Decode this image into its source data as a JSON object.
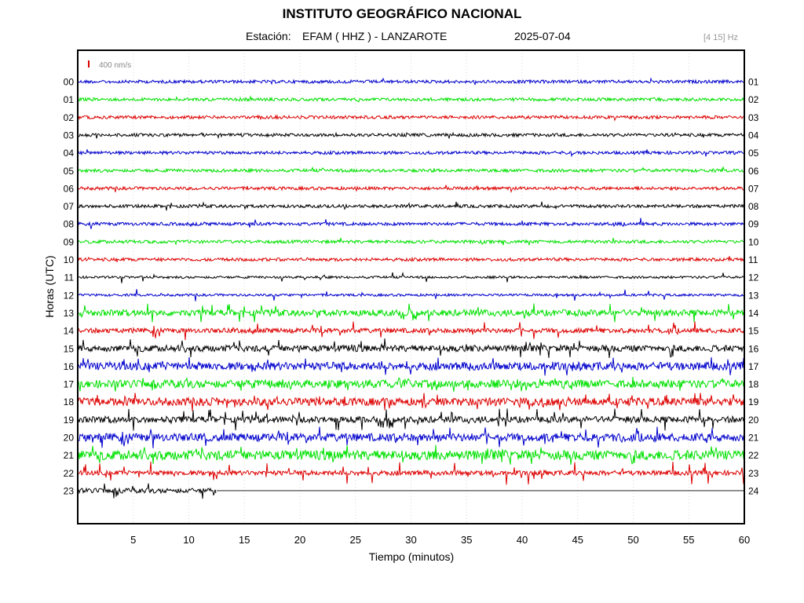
{
  "header": {
    "title": "INSTITUTO GEOGRÁFICO NACIONAL",
    "station_label": "Estación:",
    "station": "EFAM ( HHZ ) - LANZAROTE",
    "date": "2025-07-04",
    "filter": "[4 15] Hz"
  },
  "colors": {
    "blue": "#0000cc",
    "green": "#00e000",
    "red": "#dd0000",
    "black": "#000000",
    "scale_bar": "#dd0000"
  },
  "chart_data": {
    "type": "line",
    "title": "INSTITUTO GEOGRÁFICO NACIONAL",
    "xlabel": "Tiempo (minutos)",
    "ylabel": "Horas (UTC)",
    "xlim": [
      0,
      60
    ],
    "x_ticks": [
      5,
      10,
      15,
      20,
      25,
      30,
      35,
      40,
      45,
      50,
      55,
      60
    ],
    "scale_bar_label": "400 nm/s",
    "grid": "vertical dotted",
    "left_hour_labels": [
      "00",
      "01",
      "02",
      "03",
      "04",
      "05",
      "06",
      "07",
      "08",
      "09",
      "10",
      "11",
      "12",
      "13",
      "14",
      "15",
      "16",
      "17",
      "18",
      "19",
      "20",
      "21",
      "22",
      "23"
    ],
    "right_hour_labels": [
      "01",
      "02",
      "03",
      "04",
      "05",
      "06",
      "07",
      "08",
      "09",
      "10",
      "11",
      "12",
      "13",
      "14",
      "15",
      "16",
      "17",
      "18",
      "19",
      "20",
      "21",
      "22",
      "23",
      "24"
    ],
    "traces": [
      {
        "hour": "00",
        "color": "blue",
        "noise": 2,
        "spike_rate": 0.3,
        "spike_amp": 4,
        "end_minute": 60
      },
      {
        "hour": "01",
        "color": "green",
        "noise": 2,
        "spike_rate": 0.3,
        "spike_amp": 4,
        "end_minute": 60
      },
      {
        "hour": "02",
        "color": "red",
        "noise": 2,
        "spike_rate": 0.3,
        "spike_amp": 4,
        "end_minute": 60
      },
      {
        "hour": "03",
        "color": "black",
        "noise": 2,
        "spike_rate": 0.4,
        "spike_amp": 5,
        "end_minute": 60
      },
      {
        "hour": "04",
        "color": "blue",
        "noise": 2,
        "spike_rate": 0.4,
        "spike_amp": 5,
        "end_minute": 60
      },
      {
        "hour": "05",
        "color": "green",
        "noise": 2,
        "spike_rate": 0.4,
        "spike_amp": 5,
        "end_minute": 60
      },
      {
        "hour": "06",
        "color": "red",
        "noise": 2,
        "spike_rate": 0.4,
        "spike_amp": 5,
        "end_minute": 60
      },
      {
        "hour": "07",
        "color": "black",
        "noise": 2,
        "spike_rate": 0.5,
        "spike_amp": 6,
        "end_minute": 60
      },
      {
        "hour": "08",
        "color": "blue",
        "noise": 2,
        "spike_rate": 0.6,
        "spike_amp": 8,
        "end_minute": 60
      },
      {
        "hour": "09",
        "color": "green",
        "noise": 2,
        "spike_rate": 0.3,
        "spike_amp": 5,
        "end_minute": 60
      },
      {
        "hour": "10",
        "color": "red",
        "noise": 2,
        "spike_rate": 0.3,
        "spike_amp": 5,
        "end_minute": 60
      },
      {
        "hour": "11",
        "color": "black",
        "noise": 1.5,
        "spike_rate": 0.6,
        "spike_amp": 8,
        "end_minute": 60
      },
      {
        "hour": "12",
        "color": "blue",
        "noise": 1.5,
        "spike_rate": 0.8,
        "spike_amp": 8,
        "end_minute": 60
      },
      {
        "hour": "13",
        "color": "green",
        "noise": 4,
        "spike_rate": 1.5,
        "spike_amp": 12,
        "end_minute": 60
      },
      {
        "hour": "14",
        "color": "red",
        "noise": 3,
        "spike_rate": 1.8,
        "spike_amp": 12,
        "end_minute": 60
      },
      {
        "hour": "15",
        "color": "black",
        "noise": 4,
        "spike_rate": 2.0,
        "spike_amp": 13,
        "end_minute": 60
      },
      {
        "hour": "16",
        "color": "blue",
        "noise": 5,
        "spike_rate": 2.0,
        "spike_amp": 12,
        "end_minute": 60
      },
      {
        "hour": "17",
        "color": "green",
        "noise": 5,
        "spike_rate": 1.8,
        "spike_amp": 10,
        "end_minute": 60
      },
      {
        "hour": "18",
        "color": "red",
        "noise": 5,
        "spike_rate": 2.2,
        "spike_amp": 12,
        "end_minute": 60
      },
      {
        "hour": "19",
        "color": "black",
        "noise": 4,
        "spike_rate": 2.4,
        "spike_amp": 14,
        "end_minute": 60
      },
      {
        "hour": "20",
        "color": "blue",
        "noise": 5,
        "spike_rate": 2.4,
        "spike_amp": 14,
        "end_minute": 60
      },
      {
        "hour": "21",
        "color": "green",
        "noise": 6,
        "spike_rate": 2.2,
        "spike_amp": 13,
        "end_minute": 60
      },
      {
        "hour": "22",
        "color": "red",
        "noise": 3,
        "spike_rate": 2.0,
        "spike_amp": 15,
        "end_minute": 60
      },
      {
        "hour": "23",
        "color": "black",
        "noise": 3,
        "spike_rate": 2.0,
        "spike_amp": 12,
        "end_minute": 12.5
      }
    ]
  }
}
